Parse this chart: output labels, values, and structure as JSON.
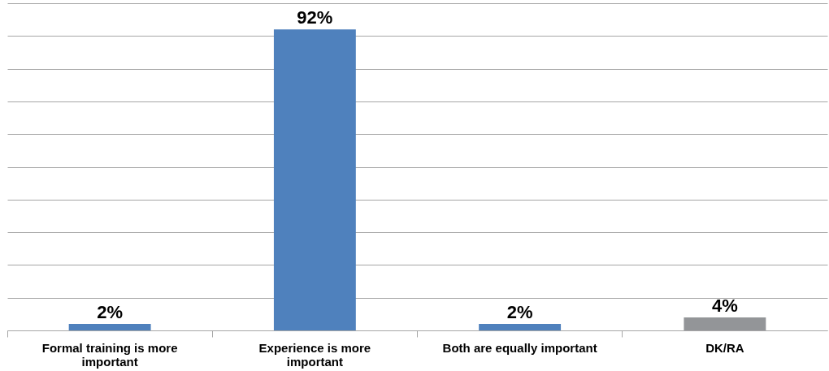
{
  "chart_data": {
    "type": "bar",
    "categories": [
      "Formal training is more important",
      "Experience is more important",
      "Both are equally important",
      "DK/RA"
    ],
    "values": [
      2,
      92,
      2,
      4
    ],
    "colors": [
      "#4f81bd",
      "#4f81bd",
      "#4f81bd",
      "#939598"
    ],
    "value_labels": [
      "2%",
      "92%",
      "2%",
      "4%"
    ],
    "ylim": [
      0,
      100
    ],
    "yticks": [
      {
        "value": 0,
        "label": null
      },
      {
        "value": 10,
        "label": null
      },
      {
        "value": 20,
        "label": null
      },
      {
        "value": 30,
        "label": null
      },
      {
        "value": 40,
        "label": null
      },
      {
        "value": 50,
        "label": null
      },
      {
        "value": 60,
        "label": null
      },
      {
        "value": 70,
        "label": null
      },
      {
        "value": 80,
        "label": null
      },
      {
        "value": 90,
        "label": null
      },
      {
        "value": 100,
        "label": null
      }
    ],
    "grid": "y",
    "tick_labels": "x"
  }
}
